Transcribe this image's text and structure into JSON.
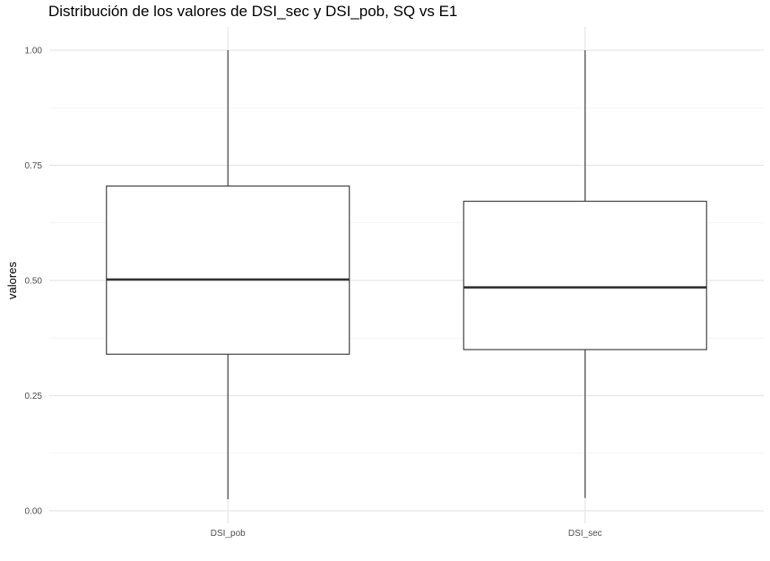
{
  "chart_data": {
    "type": "boxplot",
    "title": "Distribución de los valores de DSI_sec y DSI_pob, SQ vs E1",
    "xlabel": "",
    "ylabel": "valores",
    "ylim": [
      0,
      1
    ],
    "y_ticks": [
      "0.00",
      "0.25",
      "0.50",
      "0.75",
      "1.00"
    ],
    "y_tick_values": [
      0,
      0.25,
      0.5,
      0.75,
      1.0
    ],
    "grid": true,
    "categories": [
      "DSI_pob",
      "DSI_sec"
    ],
    "boxes": [
      {
        "category": "DSI_pob",
        "min": 0.025,
        "q1": 0.34,
        "median": 0.502,
        "q3": 0.705,
        "max": 1.0
      },
      {
        "category": "DSI_sec",
        "min": 0.028,
        "q1": 0.35,
        "median": 0.485,
        "q3": 0.672,
        "max": 1.0
      }
    ],
    "colors": {
      "box_fill": "#ffffff",
      "box_stroke": "#333333",
      "grid_major": "#e6e6e6",
      "grid_minor": "#f0f0f0"
    }
  }
}
